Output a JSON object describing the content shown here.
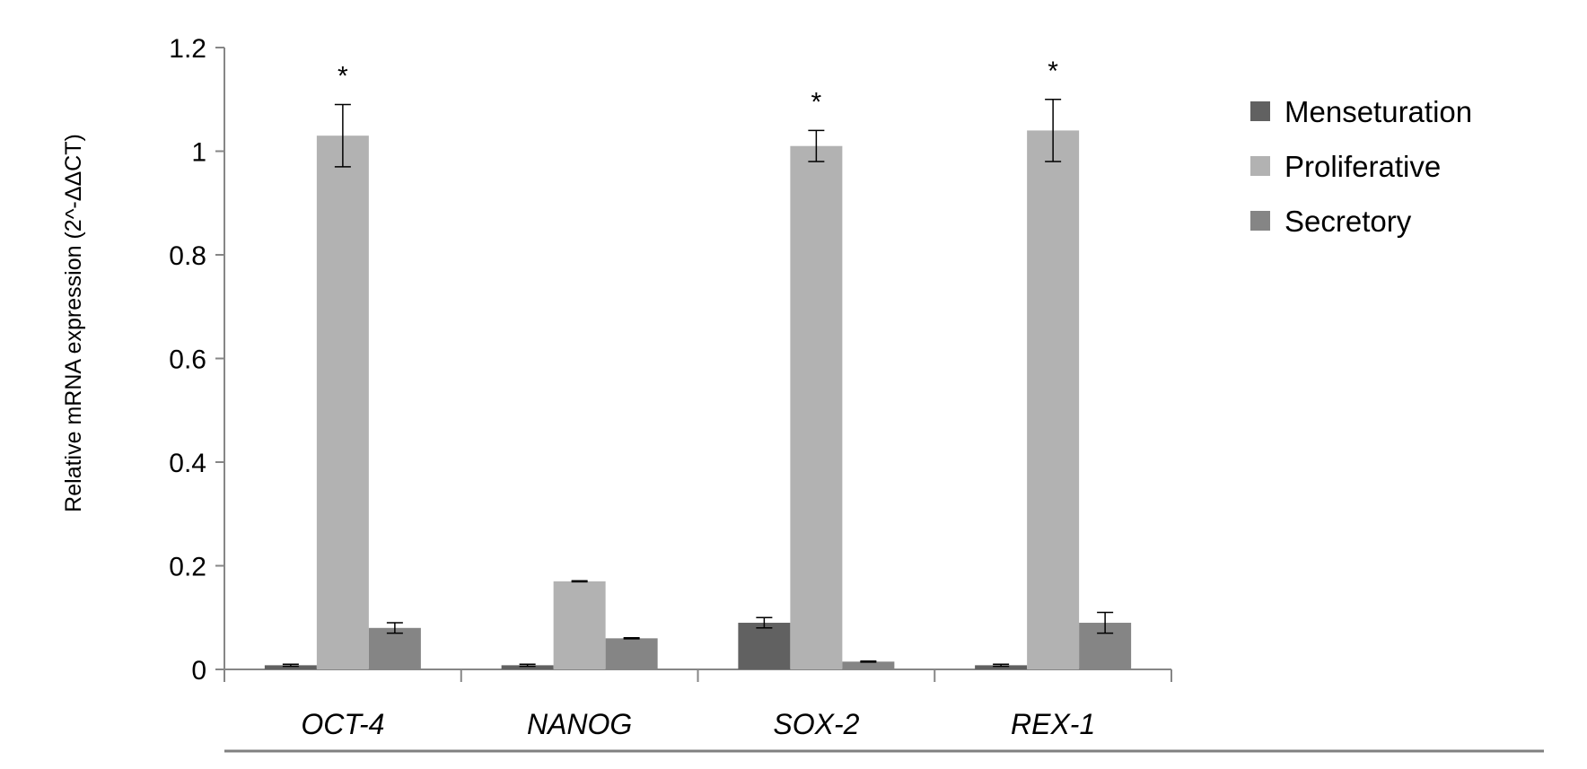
{
  "chart_data": {
    "type": "bar",
    "categories": [
      "OCT-4",
      "NANOG",
      "SOX-2",
      "REX-1"
    ],
    "ylabel": "Relative mRNA expression (2^-ΔΔCT)",
    "ylim": [
      0,
      1.2
    ],
    "yticks": [
      "0",
      "0.2",
      "0.4",
      "0.6",
      "0.8",
      "1",
      "1.2"
    ],
    "legend_position": "right",
    "series": [
      {
        "name": "Menseturation",
        "color": "#616161",
        "values": [
          0.008,
          0.008,
          0.09,
          0.008
        ],
        "errors": [
          0.002,
          0.002,
          0.01,
          0.002
        ]
      },
      {
        "name": "Proliferative",
        "color": "#b2b2b2",
        "values": [
          1.03,
          0.17,
          1.01,
          1.04
        ],
        "errors": [
          0.06,
          0.001,
          0.03,
          0.06
        ]
      },
      {
        "name": "Secretory",
        "color": "#858585",
        "values": [
          0.08,
          0.06,
          0.015,
          0.09
        ],
        "errors": [
          0.01,
          0.001,
          0.001,
          0.02
        ]
      }
    ],
    "annotations": [
      {
        "text": "*",
        "category": "OCT-4",
        "series": "Proliferative"
      },
      {
        "text": "*",
        "category": "SOX-2",
        "series": "Proliferative"
      },
      {
        "text": "*",
        "category": "REX-1",
        "series": "Proliferative"
      }
    ]
  }
}
